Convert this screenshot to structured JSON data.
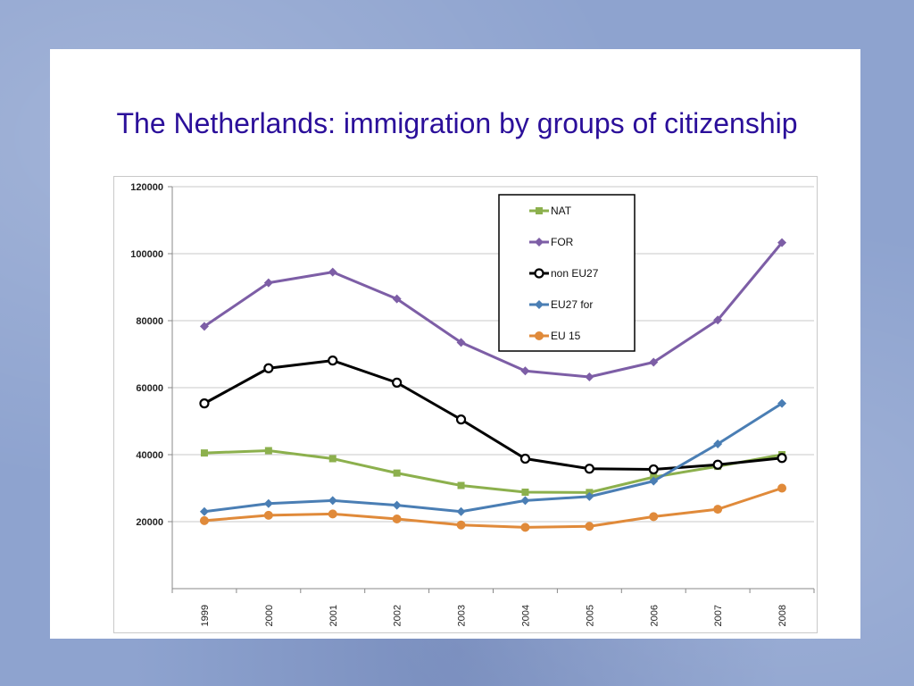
{
  "slide": {
    "title": "The Netherlands: immigration by groups of citizenship"
  },
  "chart_data": {
    "type": "line",
    "categories": [
      "1999",
      "2000",
      "2001",
      "2002",
      "2003",
      "2004",
      "2005",
      "2006",
      "2007",
      "2008"
    ],
    "ylim": [
      0,
      120000
    ],
    "yticks": [
      20000,
      40000,
      60000,
      80000,
      100000,
      120000
    ],
    "ytick_labels": [
      "20000",
      "40000",
      "60000",
      "80000",
      "100000",
      "120000"
    ],
    "grid": true,
    "legend_position": "top-center",
    "series": [
      {
        "name": "NAT",
        "color": "#8cb04d",
        "marker": "square",
        "values": [
          40500,
          41200,
          38800,
          34500,
          30800,
          28800,
          28700,
          33300,
          36500,
          40000
        ]
      },
      {
        "name": "FOR",
        "color": "#7d5ea6",
        "marker": "diamond",
        "values": [
          78300,
          91300,
          94500,
          86500,
          73500,
          65000,
          63200,
          67600,
          80200,
          103300
        ]
      },
      {
        "name": "non EU27",
        "color": "#000000",
        "marker": "circle-open",
        "values": [
          55300,
          65800,
          68100,
          61500,
          50500,
          38800,
          35800,
          35600,
          37000,
          39000
        ]
      },
      {
        "name": "EU27 for",
        "color": "#4a7eb4",
        "marker": "diamond",
        "values": [
          23000,
          25400,
          26300,
          24900,
          23000,
          26300,
          27500,
          32100,
          43200,
          55300
        ]
      },
      {
        "name": "EU 15",
        "color": "#e08a3a",
        "marker": "circle",
        "values": [
          20300,
          21900,
          22300,
          20800,
          19000,
          18300,
          18600,
          21500,
          23700,
          30000
        ]
      }
    ]
  }
}
